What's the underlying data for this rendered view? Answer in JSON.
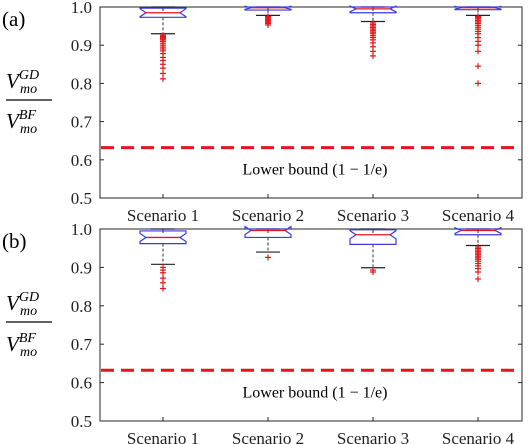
{
  "chart_data": [
    {
      "type": "box",
      "panel_label": "(a)",
      "ylabel": {
        "numerator": "V",
        "numerator_sup": "GD",
        "numerator_sub": "mo",
        "denominator": "V",
        "denominator_sup": "BF",
        "denominator_sub": "mo"
      },
      "categories": [
        "Scenario 1",
        "Scenario 2",
        "Scenario 3",
        "Scenario 4"
      ],
      "ylim": [
        0.5,
        1.0
      ],
      "yticks": [
        "0.5",
        "0.6",
        "0.7",
        "0.8",
        "0.9",
        "1.0"
      ],
      "reference_line": {
        "value": 0.632,
        "label": "Lower bound (1 − 1/e)",
        "color": "#e8141b",
        "style": "dashed"
      },
      "boxes": [
        {
          "category": "Scenario 1",
          "whisker_low": 0.93,
          "q1": 0.973,
          "median": 0.985,
          "q3": 0.997,
          "whisker_high": 1.0,
          "outliers": [
            0.926,
            0.923,
            0.92,
            0.917,
            0.914,
            0.91,
            0.905,
            0.9,
            0.895,
            0.89,
            0.885,
            0.878,
            0.868,
            0.86,
            0.85,
            0.84,
            0.826,
            0.812
          ]
        },
        {
          "category": "Scenario 2",
          "whisker_low": 0.978,
          "q1": 0.992,
          "median": 0.998,
          "q3": 1.0,
          "whisker_high": 1.0,
          "outliers": [
            0.975,
            0.972,
            0.969,
            0.966,
            0.963,
            0.96,
            0.957,
            0.953
          ]
        },
        {
          "category": "Scenario 3",
          "whisker_low": 0.962,
          "q1": 0.985,
          "median": 0.995,
          "q3": 1.0,
          "whisker_high": 1.0,
          "outliers": [
            0.958,
            0.954,
            0.95,
            0.946,
            0.942,
            0.938,
            0.934,
            0.93,
            0.925,
            0.92,
            0.914,
            0.906,
            0.896,
            0.884,
            0.872
          ]
        },
        {
          "category": "Scenario 4",
          "whisker_low": 0.978,
          "q1": 0.993,
          "median": 0.998,
          "q3": 1.0,
          "whisker_high": 1.0,
          "outliers": [
            0.975,
            0.972,
            0.969,
            0.965,
            0.961,
            0.957,
            0.952,
            0.947,
            0.942,
            0.936,
            0.93,
            0.92,
            0.91,
            0.9,
            0.884,
            0.845,
            0.8
          ]
        }
      ],
      "box_color": "#3b3bd6",
      "median_color": "#e8141b",
      "outlier_color": "#e8141b"
    },
    {
      "type": "box",
      "panel_label": "(b)",
      "ylabel": {
        "numerator": "V",
        "numerator_sup": "GD",
        "numerator_sub": "mo",
        "denominator": "V",
        "denominator_sup": "BF",
        "denominator_sub": "mo"
      },
      "categories": [
        "Scenario 1",
        "Scenario 2",
        "Scenario 3",
        "Scenario 4"
      ],
      "ylim": [
        0.5,
        1.0
      ],
      "yticks": [
        "0.5",
        "0.6",
        "0.7",
        "0.8",
        "0.9",
        "1.0"
      ],
      "reference_line": {
        "value": 0.632,
        "label": "Lower bound (1 − 1/e)",
        "color": "#e8141b",
        "style": "dashed"
      },
      "boxes": [
        {
          "category": "Scenario 1",
          "whisker_low": 0.908,
          "q1": 0.962,
          "median": 0.978,
          "q3": 0.995,
          "whisker_high": 1.0,
          "outliers": [
            0.9,
            0.893,
            0.886,
            0.872,
            0.86,
            0.845
          ]
        },
        {
          "category": "Scenario 2",
          "whisker_low": 0.94,
          "q1": 0.978,
          "median": 0.996,
          "q3": 1.0,
          "whisker_high": 1.0,
          "outliers": [
            0.926
          ]
        },
        {
          "category": "Scenario 3",
          "whisker_low": 0.899,
          "q1": 0.96,
          "median": 0.985,
          "q3": 0.998,
          "whisker_high": 1.0,
          "outliers": [
            0.893,
            0.888
          ]
        },
        {
          "category": "Scenario 4",
          "whisker_low": 0.957,
          "q1": 0.985,
          "median": 0.996,
          "q3": 1.0,
          "whisker_high": 1.0,
          "outliers": [
            0.953,
            0.949,
            0.945,
            0.941,
            0.937,
            0.933,
            0.929,
            0.925,
            0.921,
            0.916,
            0.91,
            0.904,
            0.897,
            0.888,
            0.87
          ]
        }
      ],
      "box_color": "#3b3bd6",
      "median_color": "#e8141b",
      "outlier_color": "#e8141b"
    }
  ]
}
